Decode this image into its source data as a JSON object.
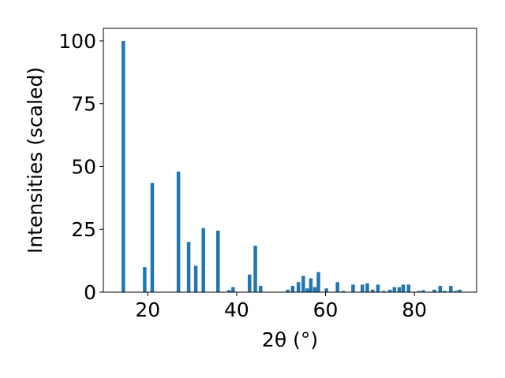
{
  "chart_data": {
    "type": "bar",
    "xlabel": "2θ (°)",
    "ylabel": "Intensities (scaled)",
    "xlim": [
      10,
      94
    ],
    "ylim": [
      0,
      105
    ],
    "xticks": [
      20,
      40,
      60,
      80
    ],
    "yticks": [
      0,
      25,
      50,
      75,
      100
    ],
    "x_tick_labels": [
      "20",
      "40",
      "60",
      "80"
    ],
    "y_tick_labels": [
      "0",
      "25",
      "50",
      "75",
      "100"
    ],
    "grid": false,
    "bar_color": "#1f77b4",
    "bar_width": 0.8,
    "x": [
      14.5,
      19.3,
      21.0,
      26.9,
      29.2,
      30.8,
      32.5,
      35.8,
      38.3,
      39.2,
      42.9,
      44.2,
      45.4,
      51.5,
      52.6,
      53.9,
      55.0,
      55.9,
      56.7,
      57.6,
      58.4,
      60.2,
      62.7,
      64.0,
      66.2,
      68.3,
      69.4,
      70.6,
      71.8,
      73.1,
      74.5,
      75.5,
      76.6,
      77.5,
      78.7,
      81.0,
      82.0,
      84.5,
      85.8,
      86.8,
      88.2,
      89.3,
      90.2
    ],
    "values": [
      100,
      10,
      43.5,
      48,
      20,
      10.5,
      25.5,
      24.5,
      0.8,
      2.0,
      7.0,
      18.5,
      2.5,
      1.0,
      2.5,
      4.0,
      6.5,
      1.5,
      5.5,
      2.0,
      8.0,
      1.5,
      4.0,
      0.5,
      3.0,
      3.0,
      3.5,
      1.0,
      3.0,
      0.5,
      1.0,
      2.0,
      2.0,
      3.0,
      3.0,
      0.5,
      0.8,
      1.0,
      2.5,
      0.5,
      2.5,
      0.5,
      1.0
    ]
  }
}
